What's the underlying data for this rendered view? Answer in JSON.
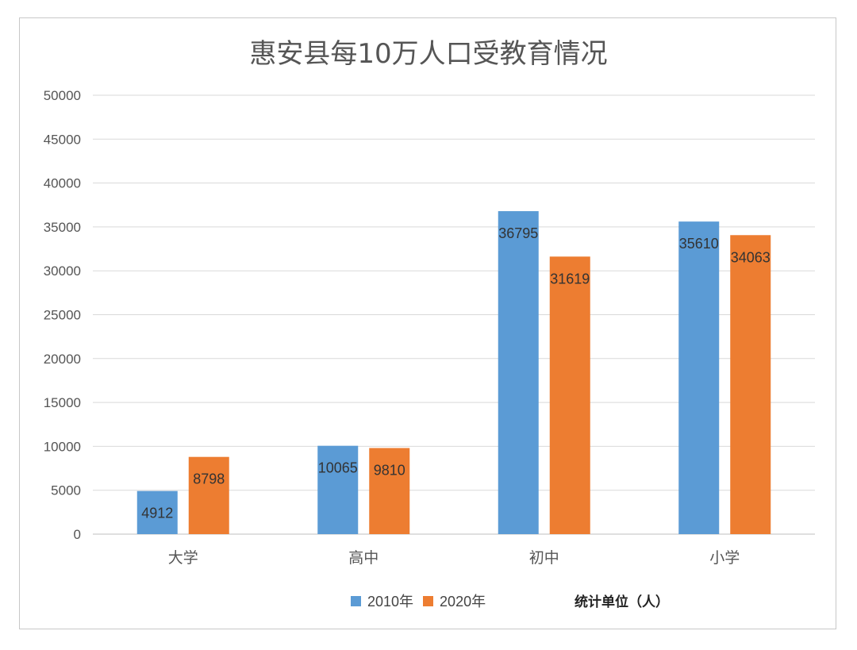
{
  "chart_data": {
    "type": "bar",
    "title": "惠安县每10万人口受教育情况",
    "categories": [
      "大学",
      "高中",
      "初中",
      "小学"
    ],
    "series": [
      {
        "name": "2010年",
        "color": "#5b9bd5",
        "values": [
          4912,
          10065,
          36795,
          35610
        ]
      },
      {
        "name": "2020年",
        "color": "#ed7d31",
        "values": [
          8798,
          9810,
          31619,
          34063
        ]
      }
    ],
    "ylim": [
      0,
      50000
    ],
    "yticks": [
      0,
      5000,
      10000,
      15000,
      20000,
      25000,
      30000,
      35000,
      40000,
      45000,
      50000
    ],
    "grid": true,
    "legend_position": "bottom",
    "note": "统计单位（人）"
  }
}
